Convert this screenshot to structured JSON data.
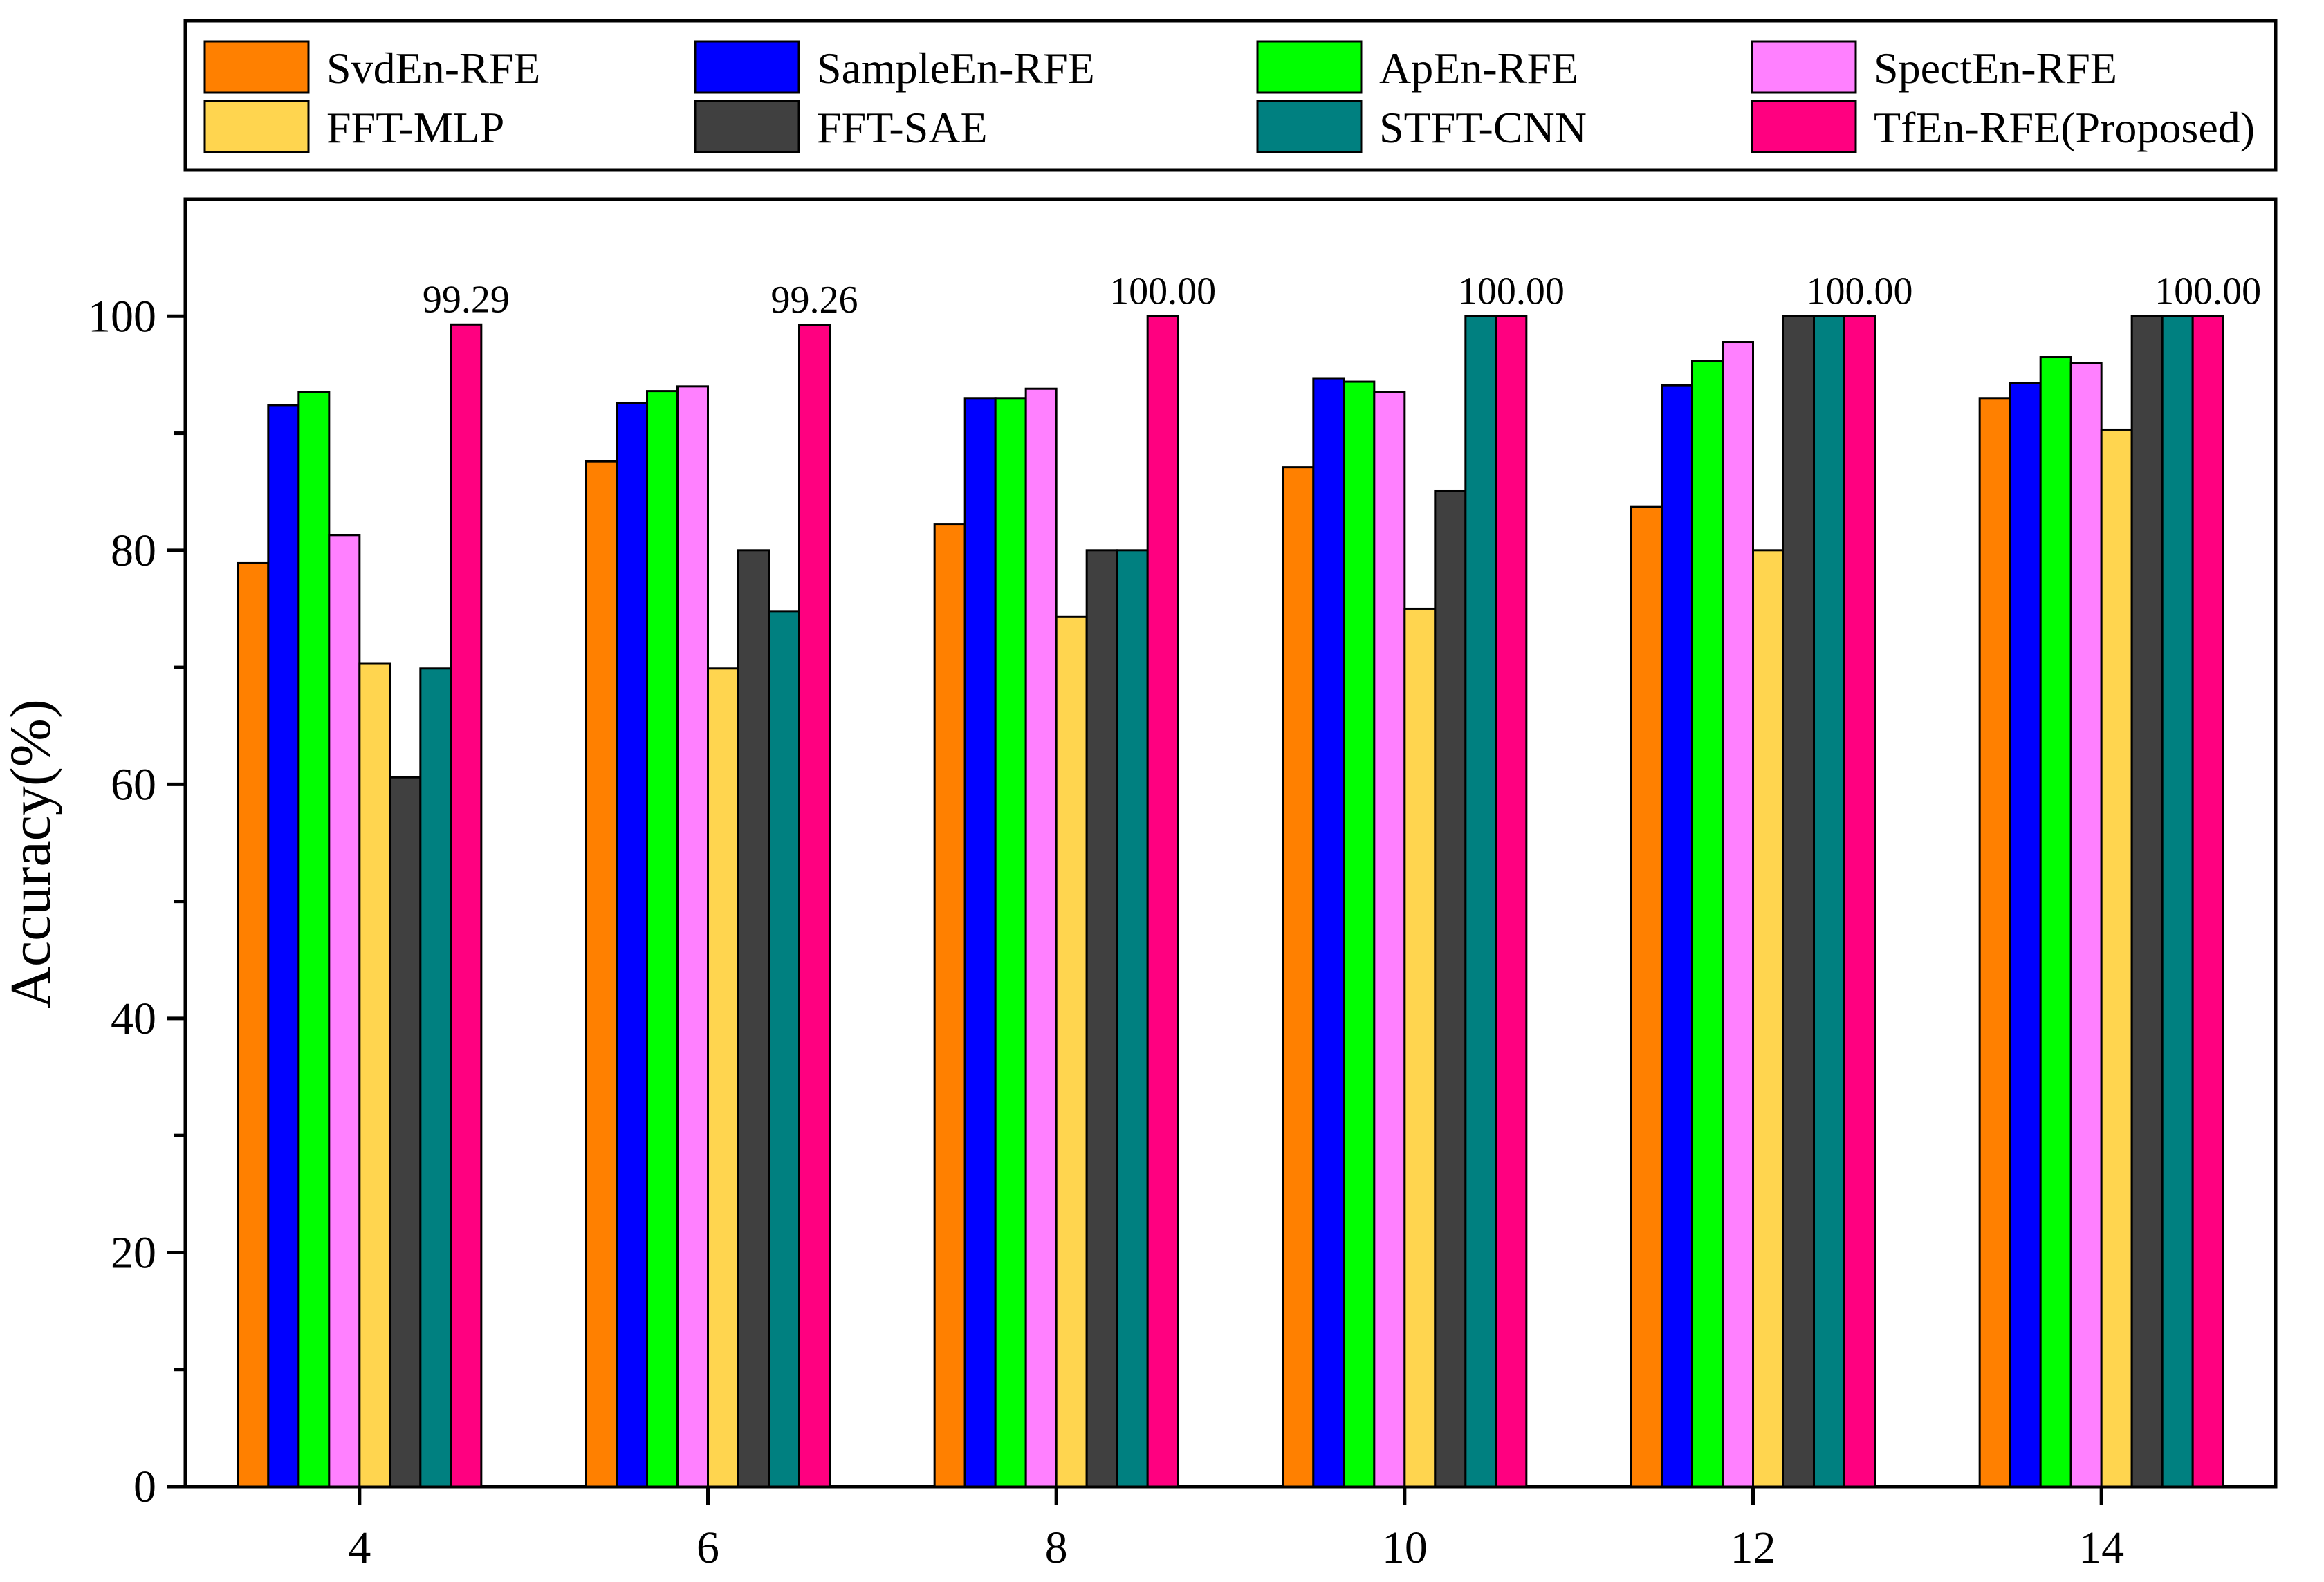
{
  "chart_data": {
    "type": "bar",
    "title": "",
    "xlabel": "",
    "ylabel": "Accuracy(%)",
    "ylim": [
      0,
      110
    ],
    "yticks": [
      0,
      20,
      40,
      60,
      80,
      100
    ],
    "yticklabels": [
      "0",
      "20",
      "40",
      "60",
      "80",
      "100"
    ],
    "categories": [
      "4",
      "6",
      "8",
      "10",
      "12",
      "14"
    ],
    "grid": false,
    "legend_position": "top",
    "series": [
      {
        "name": "SvdEn-RFE",
        "color": "#ff8000",
        "values": [
          78.9,
          87.6,
          82.2,
          87.1,
          83.7,
          93.0
        ]
      },
      {
        "name": "SampleEn-RFE",
        "color": "#0000ff",
        "values": [
          92.4,
          92.6,
          93.0,
          94.7,
          94.1,
          94.3
        ]
      },
      {
        "name": "ApEn-RFE",
        "color": "#00ff00",
        "values": [
          93.5,
          93.6,
          93.0,
          94.4,
          96.2,
          96.5
        ]
      },
      {
        "name": "SpectEn-RFE",
        "color": "#ff80ff",
        "values": [
          81.3,
          94.0,
          93.8,
          93.5,
          97.8,
          96.0
        ]
      },
      {
        "name": "FFT-MLP",
        "color": "#ffd54f",
        "values": [
          70.3,
          69.9,
          74.3,
          75.0,
          80.0,
          90.3
        ]
      },
      {
        "name": "FFT-SAE",
        "color": "#404040",
        "values": [
          60.6,
          80.0,
          80.0,
          85.1,
          100.0,
          100.0
        ]
      },
      {
        "name": "STFT-CNN",
        "color": "#008080",
        "values": [
          69.9,
          74.8,
          80.0,
          100.0,
          100.0,
          100.0
        ]
      },
      {
        "name": "TfEn-RFE(Proposed)",
        "color": "#ff0080",
        "values": [
          99.29,
          99.26,
          100.0,
          100.0,
          100.0,
          100.0
        ]
      }
    ],
    "annotations": [
      "99.29",
      "99.26",
      "100.00",
      "100.00",
      "100.00",
      "100.00"
    ]
  }
}
